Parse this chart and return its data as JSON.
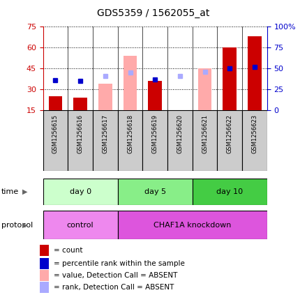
{
  "title": "GDS5359 / 1562055_at",
  "samples": [
    "GSM1256615",
    "GSM1256616",
    "GSM1256617",
    "GSM1256618",
    "GSM1256619",
    "GSM1256620",
    "GSM1256621",
    "GSM1256622",
    "GSM1256623"
  ],
  "count_present": [
    25,
    24,
    null,
    null,
    36,
    null,
    null,
    60,
    68
  ],
  "count_absent": [
    null,
    null,
    34,
    54,
    null,
    null,
    45,
    null,
    null
  ],
  "rank_present": [
    36,
    35,
    null,
    null,
    37,
    null,
    null,
    50,
    52
  ],
  "rank_absent": [
    null,
    null,
    41,
    45,
    null,
    41,
    46,
    null,
    null
  ],
  "left_ylim": [
    15,
    75
  ],
  "left_yticks": [
    15,
    30,
    45,
    60,
    75
  ],
  "right_ylim": [
    0,
    100
  ],
  "right_yticks": [
    0,
    25,
    50,
    75,
    100
  ],
  "right_yticklabels": [
    "0",
    "25",
    "50",
    "75",
    "100%"
  ],
  "count_color": "#cc0000",
  "count_absent_color": "#ffaaaa",
  "rank_color": "#0000cc",
  "rank_absent_color": "#aaaaff",
  "bar_width": 0.55,
  "marker_size": 5,
  "sample_col_bg": "#cccccc",
  "time_groups": [
    {
      "label": "day 0",
      "start": 0,
      "end": 2,
      "color": "#ccffcc"
    },
    {
      "label": "day 5",
      "start": 3,
      "end": 5,
      "color": "#88ee88"
    },
    {
      "label": "day 10",
      "start": 6,
      "end": 8,
      "color": "#44cc44"
    }
  ],
  "protocol_groups": [
    {
      "label": "control",
      "start": 0,
      "end": 2,
      "color": "#ee88ee"
    },
    {
      "label": "CHAF1A knockdown",
      "start": 3,
      "end": 8,
      "color": "#dd55dd"
    }
  ],
  "legend_items": [
    {
      "color": "#cc0000",
      "label": "count"
    },
    {
      "color": "#0000cc",
      "label": "percentile rank within the sample"
    },
    {
      "color": "#ffaaaa",
      "label": "value, Detection Call = ABSENT"
    },
    {
      "color": "#aaaaff",
      "label": "rank, Detection Call = ABSENT"
    }
  ]
}
